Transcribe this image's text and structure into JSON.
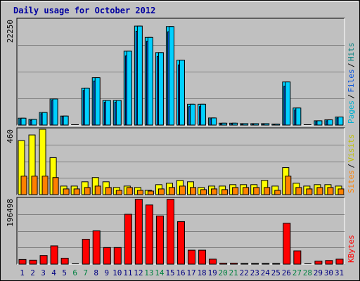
{
  "chart_data": [
    {
      "type": "bar",
      "title": "Daily usage for October 2012",
      "ymax_label": "22250",
      "ylim": [
        0,
        22250
      ],
      "legend": [
        "Pages",
        "Files",
        "Hits"
      ],
      "categories": [
        "1",
        "2",
        "3",
        "4",
        "5",
        "6",
        "7",
        "8",
        "9",
        "10",
        "11",
        "12",
        "13",
        "14",
        "15",
        "16",
        "17",
        "18",
        "19",
        "20",
        "21",
        "22",
        "23",
        "24",
        "25",
        "26",
        "27",
        "28",
        "29",
        "30",
        "31"
      ],
      "series": [
        {
          "name": "Hits",
          "values": [
            1450,
            1200,
            2650,
            5500,
            1900,
            0,
            7800,
            10000,
            5200,
            5200,
            15600,
            20900,
            18500,
            15300,
            20800,
            13700,
            4400,
            4400,
            1500,
            400,
            400,
            300,
            300,
            300,
            200,
            9100,
            3600,
            0,
            900,
            1100,
            1700
          ]
        },
        {
          "name": "Files",
          "values": [
            1200,
            1000,
            2400,
            5200,
            1800,
            0,
            7300,
            9300,
            4800,
            4800,
            14600,
            19800,
            17700,
            14500,
            19700,
            12700,
            3900,
            3900,
            1300,
            300,
            300,
            200,
            200,
            200,
            150,
            8200,
            3200,
            0,
            700,
            900,
            1500
          ]
        },
        {
          "name": "Pages",
          "values": [
            1450,
            1200,
            2650,
            5500,
            1900,
            0,
            7800,
            10000,
            5200,
            5200,
            15600,
            20900,
            18500,
            15300,
            20800,
            13700,
            4400,
            4400,
            1500,
            400,
            400,
            300,
            300,
            300,
            200,
            9100,
            3600,
            0,
            900,
            1100,
            1700
          ]
        }
      ]
    },
    {
      "type": "bar",
      "ymax_label": "460",
      "ylim": [
        0,
        460
      ],
      "legend": [
        "Sites",
        "Visits"
      ],
      "categories": [
        "1",
        "2",
        "3",
        "4",
        "5",
        "6",
        "7",
        "8",
        "9",
        "10",
        "11",
        "12",
        "13",
        "14",
        "15",
        "16",
        "17",
        "18",
        "19",
        "20",
        "21",
        "22",
        "23",
        "24",
        "25",
        "26",
        "27",
        "28",
        "29",
        "30",
        "31"
      ],
      "series": [
        {
          "name": "Visits",
          "values": [
            380,
            420,
            460,
            260,
            60,
            60,
            90,
            120,
            90,
            50,
            60,
            50,
            30,
            70,
            80,
            100,
            90,
            50,
            60,
            60,
            70,
            70,
            70,
            100,
            60,
            190,
            80,
            60,
            70,
            70,
            60
          ]
        },
        {
          "name": "Sites",
          "values": [
            130,
            130,
            130,
            120,
            40,
            40,
            50,
            60,
            50,
            30,
            50,
            30,
            25,
            40,
            50,
            60,
            50,
            35,
            40,
            35,
            50,
            50,
            50,
            50,
            30,
            130,
            50,
            40,
            50,
            50,
            40
          ]
        }
      ]
    },
    {
      "type": "bar",
      "ymax_label": "196498",
      "ylim": [
        0,
        196498
      ],
      "legend": [
        "KBytes"
      ],
      "categories": [
        "1",
        "2",
        "3",
        "4",
        "5",
        "6",
        "7",
        "8",
        "9",
        "10",
        "11",
        "12",
        "13",
        "14",
        "15",
        "16",
        "17",
        "18",
        "19",
        "20",
        "21",
        "22",
        "23",
        "24",
        "25",
        "26",
        "27",
        "28",
        "29",
        "30",
        "31"
      ],
      "weekend_days": [
        6,
        7,
        13,
        14,
        20,
        21,
        27,
        28
      ],
      "series": [
        {
          "name": "KBytes",
          "values": [
            14000,
            12000,
            26000,
            55000,
            18000,
            0,
            75000,
            100000,
            50000,
            50000,
            150000,
            195000,
            178000,
            145000,
            195000,
            128000,
            42000,
            42000,
            15000,
            3000,
            3000,
            2000,
            2000,
            2000,
            2000,
            123000,
            40000,
            0,
            9000,
            11000,
            15000
          ]
        }
      ]
    }
  ],
  "colors": {
    "background": "#c0c0c0",
    "plot": "#c0c0c0",
    "title": "#0000a0",
    "hits": "#00d0ff",
    "files": "#0050e0",
    "pages": "#00d0ff",
    "visits": "#ffff00",
    "sites": "#ff8000",
    "kbytes": "#ff0000",
    "hits_label": "#008080",
    "files_label": "#0050e0",
    "pages_label": "#00b0d0",
    "visits_label": "#c0c000",
    "sites_label": "#ff8000",
    "kbytes_label": "#ff0000",
    "weekday_label": "#000080",
    "weekend_label": "#008040"
  }
}
